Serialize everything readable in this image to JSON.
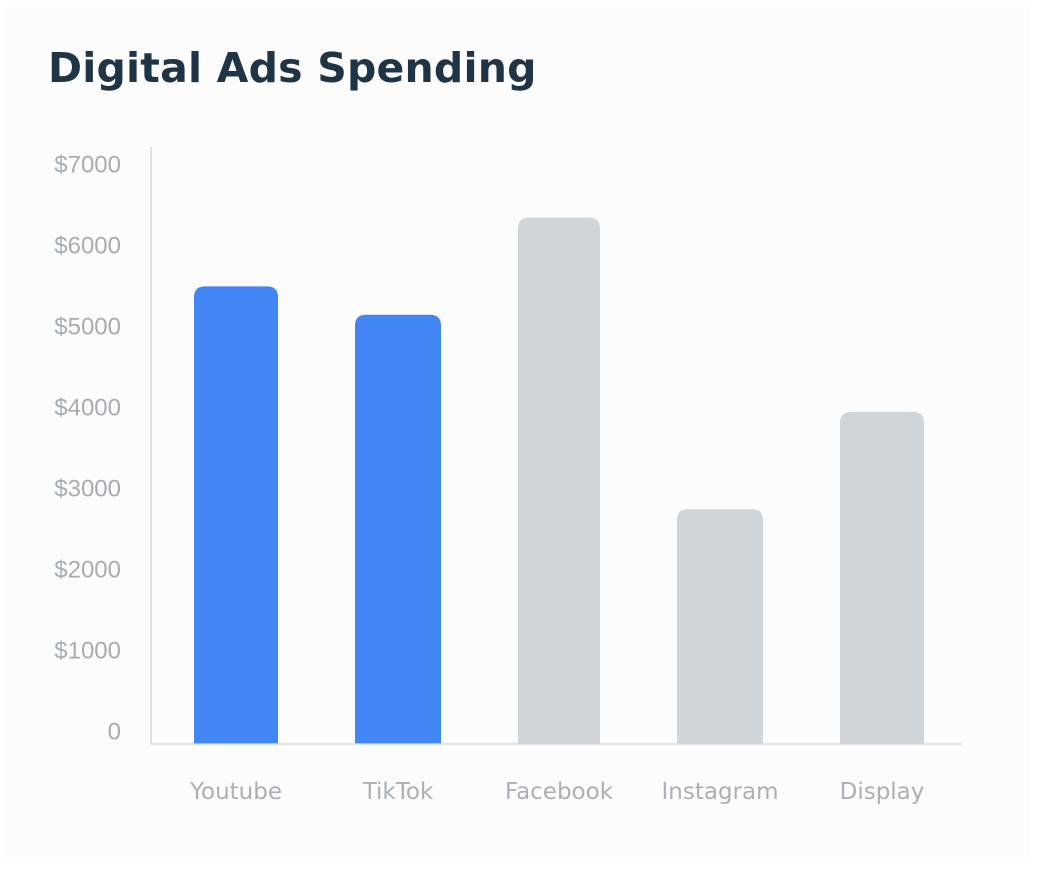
{
  "chart_data": {
    "type": "bar",
    "title": "Digital Ads Spending",
    "categories": [
      "Youtube",
      "TikTok",
      "Facebook",
      "Instagram",
      "Display"
    ],
    "values": [
      5650,
      5300,
      6500,
      2900,
      4100
    ],
    "bar_colors": [
      "#4285f4",
      "#4285f4",
      "#d0d5da",
      "#d0d5da",
      "#d0d5da"
    ],
    "ylim": [
      0,
      7000
    ],
    "yticks": [
      0,
      1000,
      2000,
      3000,
      4000,
      5000,
      6000,
      7000
    ],
    "ytick_labels": [
      "0",
      "$1000",
      "$2000",
      "$3000",
      "$4000",
      "$5000",
      "$6000",
      "$7000"
    ],
    "xlabel": "",
    "ylabel": "",
    "grid": false,
    "legend": "none"
  },
  "colors": {
    "highlight_bar": "#4285f4",
    "muted_bar": "#d0d5da",
    "title": "#1f3444",
    "axis": "#d6dade",
    "tick_text": "#a5adb4"
  }
}
